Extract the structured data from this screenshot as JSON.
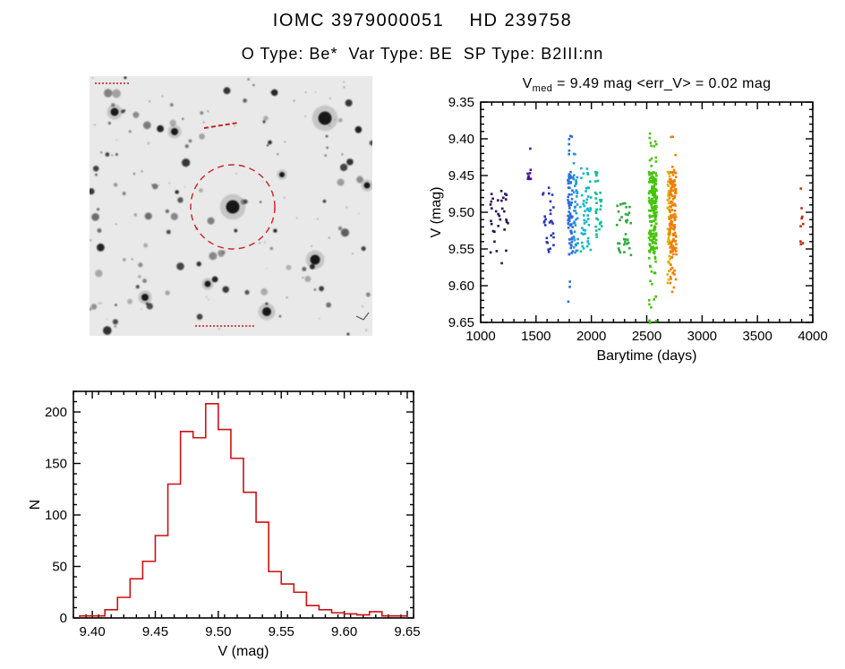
{
  "header": {
    "title": "IOMC 3979000051    HD 239758",
    "subtitle": "O Type: Be*  Var Type: BE  SP Type: B2III:nn"
  },
  "lightcurve_title": {
    "v": "V",
    "sub": "med",
    "rest": " = 9.49 mag <err_V> = 0.02 mag"
  },
  "colors": {
    "histogram_red": "#cc1111",
    "annotation_red": "#cf2020",
    "axis_black": "#000000"
  },
  "chart_data": [
    {
      "id": "lightcurve",
      "type": "scatter",
      "title": "V_med = 9.49 mag <err_V> = 0.02 mag",
      "xlabel": "Barytime (days)",
      "ylabel": "V (mag)",
      "xlim": [
        1000,
        4000
      ],
      "ylim": [
        9.35,
        9.65
      ],
      "y_axis_inverted": true,
      "grid": false,
      "legend_position": "none",
      "xticks": [
        1000,
        1500,
        2000,
        2500,
        3000,
        3500,
        4000
      ],
      "yticks": [
        9.35,
        9.4,
        9.45,
        9.5,
        9.55,
        9.6,
        9.65
      ],
      "xminor_step": 100,
      "yminor_step": 0.01,
      "median_v_mag": 9.49,
      "mean_err_v_mag": 0.02,
      "series": [
        {
          "x_range": [
            1085,
            1255
          ],
          "v_range": [
            9.47,
            9.575
          ],
          "n": 32,
          "color": "#2e0d56"
        },
        {
          "x_range": [
            1425,
            1455
          ],
          "v_range": [
            9.405,
            9.455
          ],
          "n": 12,
          "color": "#4a1690"
        },
        {
          "x_range": [
            1555,
            1665
          ],
          "v_range": [
            9.46,
            9.555
          ],
          "n": 28,
          "color": "#2836b4"
        },
        {
          "x_range": [
            1788,
            1832
          ],
          "v_range": [
            9.395,
            9.625
          ],
          "n": 75,
          "color": "#2f6cd8"
        },
        {
          "x_range": [
            1832,
            1878
          ],
          "v_range": [
            9.42,
            9.585
          ],
          "n": 45,
          "color": "#2597dc"
        },
        {
          "x_range": [
            1900,
            1998
          ],
          "v_range": [
            9.43,
            9.56
          ],
          "n": 48,
          "color": "#0cb6c8"
        },
        {
          "x_range": [
            2035,
            2098
          ],
          "v_range": [
            9.44,
            9.535
          ],
          "n": 30,
          "color": "#0bbd92"
        },
        {
          "x_range": [
            2230,
            2360
          ],
          "v_range": [
            9.485,
            9.575
          ],
          "n": 34,
          "color": "#2ca83e"
        },
        {
          "x_range": [
            2520,
            2592
          ],
          "v_range": [
            9.39,
            9.655
          ],
          "n": 220,
          "color": "#46c30c"
        },
        {
          "x_range": [
            2688,
            2712
          ],
          "v_range": [
            9.43,
            9.6
          ],
          "n": 45,
          "color": "#dcb400"
        },
        {
          "x_range": [
            2705,
            2768
          ],
          "v_range": [
            9.395,
            9.615
          ],
          "n": 145,
          "color": "#ef7f00"
        },
        {
          "x_range": [
            3888,
            3915
          ],
          "v_range": [
            9.465,
            9.545
          ],
          "n": 9,
          "color": "#c02a18"
        }
      ]
    },
    {
      "id": "vhist",
      "type": "bar",
      "style": "step-outline",
      "xlabel": "V (mag)",
      "ylabel": "N",
      "color": "#cc1111",
      "bin_start": 9.39,
      "bin_width": 0.01,
      "counts": [
        2,
        2,
        8,
        20,
        38,
        55,
        80,
        130,
        181,
        175,
        208,
        183,
        155,
        122,
        93,
        45,
        33,
        25,
        12,
        8,
        5,
        4,
        3,
        6,
        2,
        2
      ],
      "xlim": [
        9.385,
        9.655
      ],
      "ylim": [
        0,
        220
      ],
      "xticks": [
        9.4,
        9.45,
        9.5,
        9.55,
        9.6,
        9.65
      ],
      "yticks": [
        0,
        50,
        100,
        150,
        200
      ],
      "xminor_step": 0.01,
      "yminor_step": 10,
      "grid": false
    }
  ]
}
